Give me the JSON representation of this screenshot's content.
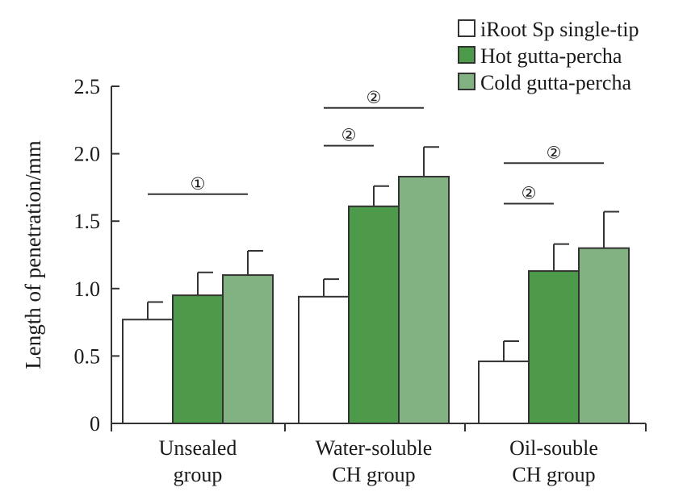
{
  "chart_data": {
    "type": "bar",
    "title": "",
    "ylabel": "Length of penetration/mm",
    "xlabel": "",
    "ylim": [
      0,
      2.5
    ],
    "yticks": [
      0,
      0.5,
      1.0,
      1.5,
      2.0,
      2.5
    ],
    "ytick_labels": [
      "0",
      "0.5",
      "1.0",
      "1.5",
      "2.0",
      "2.5"
    ],
    "grid": false,
    "legend_position": "top-right",
    "categories": [
      [
        "Unsealed",
        "group"
      ],
      [
        "Water-soluble",
        "CH group"
      ],
      [
        "Oil-souble",
        "CH group"
      ]
    ],
    "series": [
      {
        "name": "iRoot Sp single-tip",
        "color": "#ffffff",
        "values": [
          0.77,
          0.94,
          0.46
        ],
        "errors": [
          0.13,
          0.13,
          0.15
        ]
      },
      {
        "name": "Hot gutta-percha",
        "color": "#4e9a4b",
        "values": [
          0.95,
          1.61,
          1.13
        ],
        "errors": [
          0.17,
          0.15,
          0.2
        ]
      },
      {
        "name": "Cold gutta-percha",
        "color": "#82b281",
        "values": [
          1.1,
          1.83,
          1.3
        ],
        "errors": [
          0.18,
          0.22,
          0.27
        ]
      }
    ],
    "annotations": [
      {
        "label": "①",
        "group": 0,
        "from_series": 0,
        "to_series": 2,
        "y": 1.7
      },
      {
        "label": "②",
        "group": 1,
        "from_series": 0,
        "to_series": 1,
        "y": 2.06
      },
      {
        "label": "②",
        "group": 1,
        "from_series": 0,
        "to_series": 2,
        "y": 2.34
      },
      {
        "label": "②",
        "group": 2,
        "from_series": 0,
        "to_series": 1,
        "y": 1.63
      },
      {
        "label": "②",
        "group": 2,
        "from_series": 0,
        "to_series": 2,
        "y": 1.93
      }
    ]
  }
}
